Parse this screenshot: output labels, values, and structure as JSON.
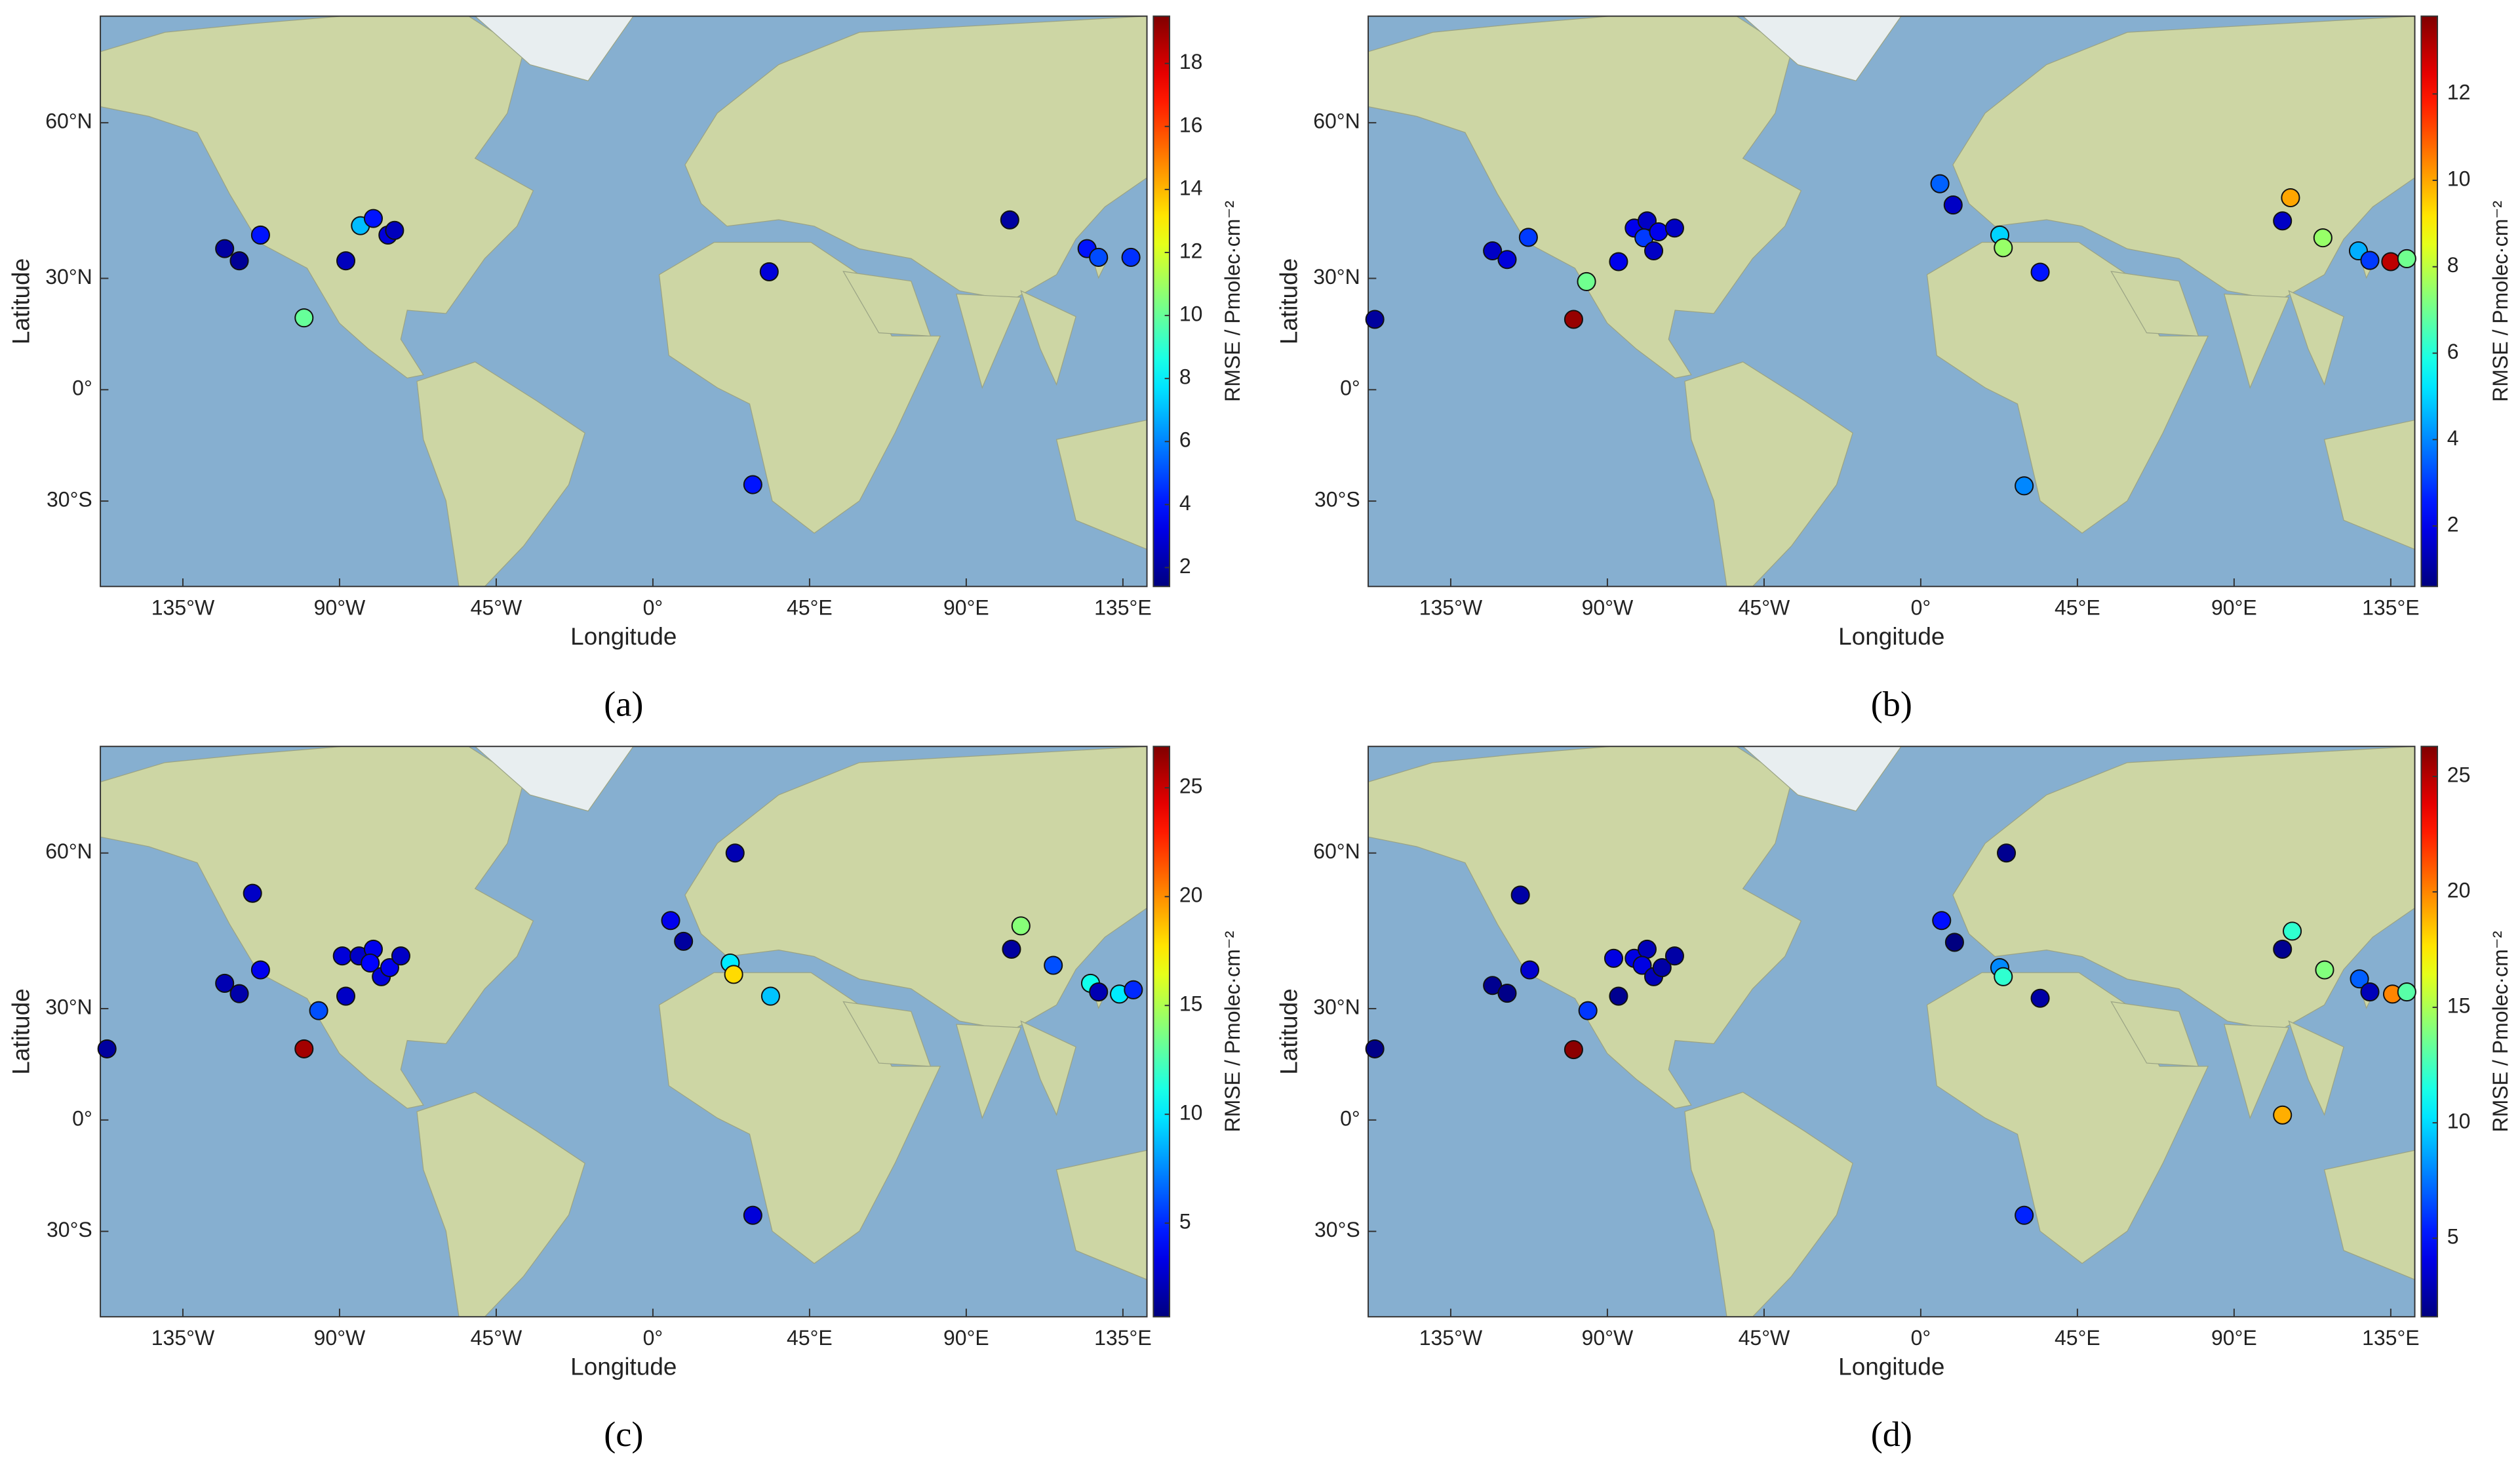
{
  "chart_data": [
    {
      "type": "scatter",
      "caption": "(a)",
      "xlabel": "Longitude",
      "ylabel": "Latitude",
      "colorbar_label": "RMSE / Pmolec·cm⁻²",
      "colormap": "jet",
      "xlim": [
        -158.7,
        141.9
      ],
      "xticks": [
        {
          "value": -135,
          "label": "135°W"
        },
        {
          "value": -90,
          "label": "90°W"
        },
        {
          "value": -45,
          "label": "45°W"
        },
        {
          "value": 0,
          "label": "0°"
        },
        {
          "value": 45,
          "label": "45°E"
        },
        {
          "value": 90,
          "label": "90°E"
        },
        {
          "value": 135,
          "label": "135°E"
        }
      ],
      "ylim": [
        -48.5,
        72
      ],
      "yscale": "mercator",
      "yticks": [
        {
          "value": -30,
          "label": "30°S"
        },
        {
          "value": 0,
          "label": "0°"
        },
        {
          "value": 30,
          "label": "30°N"
        },
        {
          "value": 60,
          "label": "60°N"
        }
      ],
      "clim": [
        1.4,
        19.5
      ],
      "cticks": [
        2,
        4,
        6,
        8,
        10,
        12,
        14,
        16,
        18
      ],
      "x": [
        -123,
        -118.8,
        -112.7,
        -100.2,
        -88.2,
        -84,
        -80.3,
        -76.1,
        -74.2,
        33.4,
        102.5,
        28.7,
        124.7,
        128,
        137.3
      ],
      "y": [
        37,
        34.2,
        40,
        19.9,
        34.2,
        42,
        43.5,
        40,
        41,
        31.6,
        43.2,
        -25.9,
        37,
        35,
        35
      ],
      "values": [
        2,
        1.8,
        4,
        10,
        2.5,
        7,
        4,
        3,
        2.5,
        3,
        2,
        4,
        4,
        5,
        4.5
      ]
    },
    {
      "type": "scatter",
      "caption": "(b)",
      "xlabel": "Longitude",
      "ylabel": "Latitude",
      "colorbar_label": "RMSE / Pmolec·cm⁻²",
      "colormap": "jet",
      "xlim": [
        -158.7,
        141.9
      ],
      "xticks": [
        {
          "value": -135,
          "label": "135°W"
        },
        {
          "value": -90,
          "label": "90°W"
        },
        {
          "value": -45,
          "label": "45°W"
        },
        {
          "value": 0,
          "label": "0°"
        },
        {
          "value": 45,
          "label": "45°E"
        },
        {
          "value": 90,
          "label": "90°E"
        },
        {
          "value": 135,
          "label": "135°E"
        }
      ],
      "ylim": [
        -48.5,
        72
      ],
      "yscale": "mercator",
      "yticks": [
        {
          "value": -30,
          "label": "30°S"
        },
        {
          "value": 0,
          "label": "0°"
        },
        {
          "value": 30,
          "label": "30°N"
        },
        {
          "value": 60,
          "label": "60°N"
        }
      ],
      "clim": [
        0.6,
        13.8
      ],
      "cticks": [
        2,
        4,
        6,
        8,
        10,
        12
      ],
      "x": [
        -156.8,
        -123,
        -118.8,
        -112.7,
        -96,
        -99.7,
        -86.8,
        -82.3,
        -78.6,
        -79.5,
        -75.3,
        -76.7,
        -70.7,
        5.5,
        9.3,
        22.7,
        23.7,
        34.3,
        29.7,
        103.9,
        106.2,
        115.5,
        125.7,
        129,
        135,
        139.6
      ],
      "y": [
        19.5,
        36.5,
        34.5,
        39.5,
        29.2,
        19.5,
        34,
        41.5,
        43,
        39.4,
        40.7,
        36.5,
        41.5,
        50.2,
        46.2,
        40,
        37.2,
        31.5,
        -26.2,
        43,
        47.6,
        39.4,
        36.5,
        34.3,
        34,
        34.7
      ],
      "values": [
        1,
        1.5,
        1.8,
        3,
        7,
        13.5,
        2,
        2,
        1.5,
        3,
        2,
        1.5,
        1.5,
        3.5,
        1.5,
        5,
        7.5,
        2.5,
        4,
        1.5,
        10,
        7.5,
        4.5,
        3,
        13,
        7
      ]
    },
    {
      "type": "scatter",
      "caption": "(c)",
      "xlabel": "Longitude",
      "ylabel": "Latitude",
      "colorbar_label": "RMSE / Pmolec·cm⁻²",
      "colormap": "jet",
      "xlim": [
        -158.7,
        141.9
      ],
      "xticks": [
        {
          "value": -135,
          "label": "135°W"
        },
        {
          "value": -90,
          "label": "90°W"
        },
        {
          "value": -45,
          "label": "45°W"
        },
        {
          "value": 0,
          "label": "0°"
        },
        {
          "value": 45,
          "label": "45°E"
        },
        {
          "value": 90,
          "label": "90°E"
        },
        {
          "value": 135,
          "label": "135°E"
        }
      ],
      "ylim": [
        -48.5,
        72
      ],
      "yscale": "mercator",
      "yticks": [
        {
          "value": -30,
          "label": "30°S"
        },
        {
          "value": 0,
          "label": "0°"
        },
        {
          "value": 30,
          "label": "30°N"
        },
        {
          "value": 60,
          "label": "60°N"
        }
      ],
      "clim": [
        0.7,
        26.9
      ],
      "cticks": [
        5,
        10,
        15,
        20,
        25
      ],
      "x": [
        -156.8,
        -115,
        -123,
        -118.8,
        -112.7,
        -96,
        -100.2,
        -88.2,
        -89.2,
        -84.4,
        -80.3,
        -81.2,
        -78,
        -75.6,
        -72.4,
        5.1,
        8.8,
        23.6,
        22.2,
        23.2,
        33.8,
        28.7,
        103,
        105.7,
        115,
        125.7,
        128,
        134,
        138
      ],
      "y": [
        19.7,
        53.8,
        36,
        33.6,
        39,
        29.5,
        19.7,
        33,
        42,
        42,
        43.4,
        40.5,
        37.5,
        39.5,
        42,
        49,
        45,
        60,
        40.5,
        38,
        33,
        -26,
        43.4,
        48,
        40,
        36,
        34,
        33.5,
        34.5
      ],
      "values": [
        1.5,
        2.5,
        2,
        1.8,
        3.5,
        6,
        26,
        2.5,
        3,
        2.5,
        3.5,
        4,
        3,
        3.5,
        2.5,
        3.5,
        1.5,
        2,
        10,
        18,
        9,
        3,
        1.5,
        14,
        6,
        11,
        2,
        10,
        5
      ]
    },
    {
      "type": "scatter",
      "caption": "(d)",
      "xlabel": "Longitude",
      "ylabel": "Latitude",
      "colorbar_label": "RMSE / Pmolec·cm⁻²",
      "colormap": "jet",
      "xlim": [
        -158.7,
        141.9
      ],
      "xticks": [
        {
          "value": -135,
          "label": "135°W"
        },
        {
          "value": -90,
          "label": "90°W"
        },
        {
          "value": -45,
          "label": "45°W"
        },
        {
          "value": 0,
          "label": "0°"
        },
        {
          "value": 45,
          "label": "45°E"
        },
        {
          "value": 90,
          "label": "90°E"
        },
        {
          "value": 135,
          "label": "135°E"
        }
      ],
      "ylim": [
        -48.5,
        72
      ],
      "yscale": "mercator",
      "yticks": [
        {
          "value": -30,
          "label": "30°S"
        },
        {
          "value": 0,
          "label": "0°"
        },
        {
          "value": 30,
          "label": "30°N"
        },
        {
          "value": 60,
          "label": "60°N"
        }
      ],
      "clim": [
        1.6,
        26.3
      ],
      "cticks": [
        5,
        10,
        15,
        20,
        25
      ],
      "x": [
        -156.8,
        -115,
        -123,
        -118.8,
        -112.3,
        -95.6,
        -99.7,
        -86.8,
        -88.2,
        -82.3,
        -78.6,
        -80,
        -76.7,
        -74.3,
        -70.7,
        6,
        9.7,
        24.6,
        22.7,
        23.7,
        34.3,
        29.7,
        103.9,
        106.7,
        103.9,
        116,
        126,
        129,
        135.5,
        139.6
      ],
      "y": [
        19.7,
        53.5,
        35.5,
        33.7,
        39,
        29.5,
        19.5,
        33,
        41.5,
        41.5,
        43.4,
        40,
        37.5,
        39.5,
        42,
        49,
        44.8,
        60,
        39.5,
        37.5,
        32.5,
        -26,
        43.4,
        47,
        1.4,
        39,
        37,
        34,
        33.5,
        34
      ],
      "values": [
        1.8,
        2.5,
        2,
        1.8,
        3.5,
        6,
        26,
        2,
        4,
        4,
        3,
        4,
        3,
        2.5,
        2.5,
        5,
        1.5,
        2,
        8,
        12,
        2.5,
        5.5,
        2,
        12,
        19,
        14,
        7,
        3,
        20,
        13
      ]
    }
  ]
}
